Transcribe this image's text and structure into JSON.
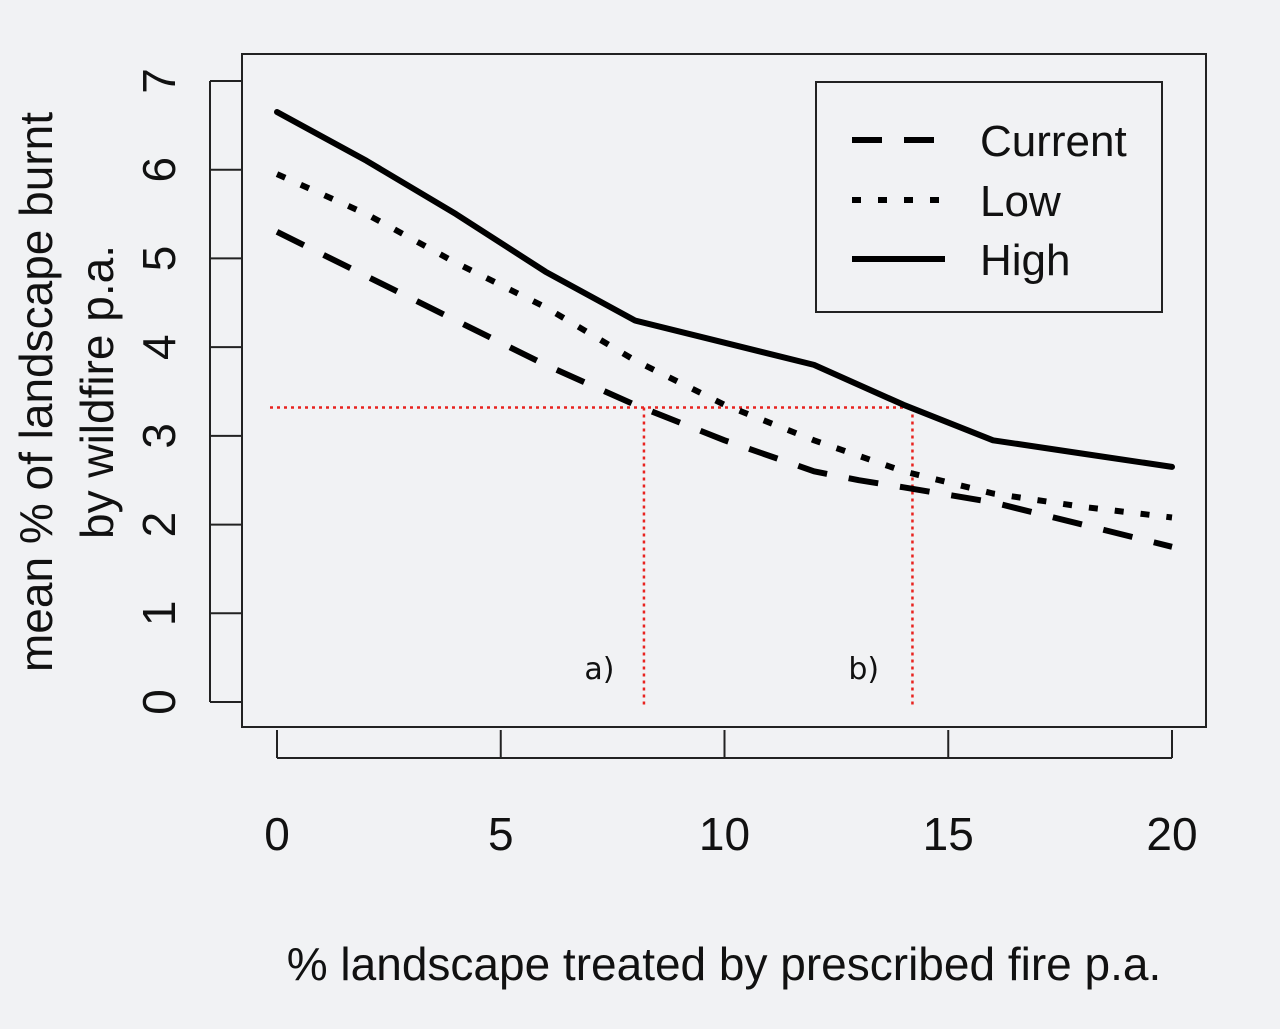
{
  "chart_data": {
    "type": "line",
    "title": "",
    "xlabel": "% landscape treated by prescribed fire p.a.",
    "ylabel_line1": "mean % of landscape burnt",
    "ylabel_line2": "by wildfire p.a.",
    "xlim": [
      0,
      20
    ],
    "ylim": [
      0,
      7
    ],
    "x_ticks": [
      0,
      5,
      10,
      15,
      20
    ],
    "x_tick_labels": [
      "0",
      "5",
      "10",
      "15",
      "20"
    ],
    "y_ticks": [
      0,
      1,
      2,
      3,
      4,
      5,
      6,
      7
    ],
    "y_tick_labels": [
      "0",
      "1",
      "2",
      "3",
      "4",
      "5",
      "6",
      "7"
    ],
    "grid": false,
    "legend_position": "top-right",
    "series": [
      {
        "name": "Current",
        "style": "dashed",
        "color": "#000000",
        "x": [
          0,
          2,
          4,
          6,
          8,
          10,
          12,
          13,
          14,
          16,
          18,
          20
        ],
        "y": [
          5.3,
          4.8,
          4.3,
          3.8,
          3.35,
          2.95,
          2.6,
          2.5,
          2.42,
          2.25,
          2.0,
          1.75
        ]
      },
      {
        "name": "Low",
        "style": "dotted",
        "color": "#000000",
        "x": [
          0,
          2,
          4,
          6,
          8,
          10,
          12,
          14,
          16,
          18,
          20
        ],
        "y": [
          5.95,
          5.5,
          4.95,
          4.45,
          3.85,
          3.35,
          2.95,
          2.6,
          2.35,
          2.2,
          2.08
        ]
      },
      {
        "name": "High",
        "style": "solid",
        "color": "#000000",
        "x": [
          0,
          2,
          4,
          6,
          8,
          10,
          12,
          14,
          16,
          18,
          20
        ],
        "y": [
          6.65,
          6.1,
          5.5,
          4.85,
          4.3,
          4.05,
          3.8,
          3.35,
          2.95,
          2.8,
          2.65
        ]
      }
    ],
    "annotations": [
      {
        "label": "a)",
        "x": 6.6,
        "y": 0.35,
        "guide_x": 8.2,
        "guide_y": 3.32
      },
      {
        "label": "b)",
        "x": 12.5,
        "y": 0.35,
        "guide_x": 14.2,
        "guide_y": 3.32
      }
    ],
    "guide_color": "#e8231f",
    "guide_y_value": 3.32
  }
}
